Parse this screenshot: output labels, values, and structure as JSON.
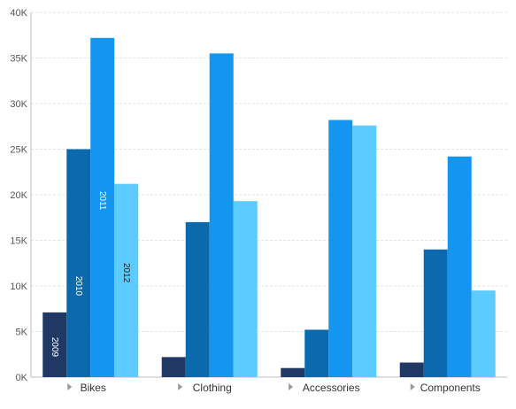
{
  "chart_data": {
    "type": "bar",
    "categories": [
      "Bikes",
      "Clothing",
      "Accessories",
      "Components"
    ],
    "series": [
      {
        "name": "2009",
        "color": "#1f3864",
        "values": [
          7100,
          2200,
          1000,
          1600
        ]
      },
      {
        "name": "2010",
        "color": "#0b6aad",
        "values": [
          25000,
          17000,
          5200,
          14000
        ]
      },
      {
        "name": "2011",
        "color": "#1496f0",
        "values": [
          37200,
          35500,
          28200,
          24200
        ]
      },
      {
        "name": "2012",
        "color": "#5ccbff",
        "values": [
          21200,
          19300,
          27600,
          9500
        ]
      }
    ],
    "y_ticks": [
      "0K",
      "5K",
      "10K",
      "15K",
      "20K",
      "25K",
      "30K",
      "35K",
      "40K"
    ],
    "ylim": [
      0,
      40000
    ],
    "grid": true,
    "category_marker": "triangle-right-icon"
  }
}
